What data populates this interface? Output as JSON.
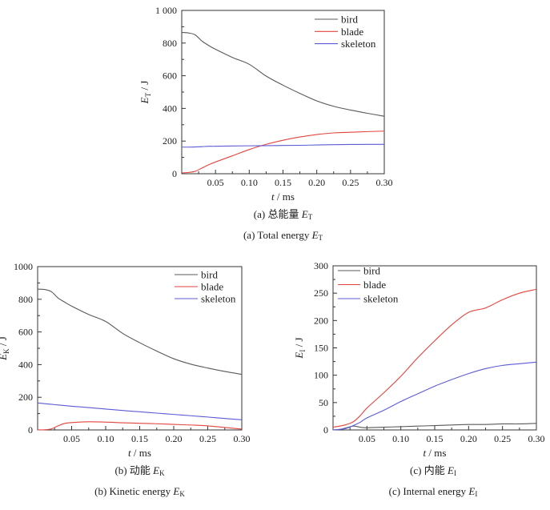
{
  "figure": {
    "background": "#ffffff",
    "frame_color": "#333333",
    "text_color": "#1c1c1c"
  },
  "chart_data": [
    {
      "id": "total",
      "type": "line",
      "xlabel": {
        "sym": "t",
        "unit": "ms"
      },
      "ylabel": {
        "sym": "E",
        "sub": "T",
        "unit": "J"
      },
      "xlim": [
        0,
        0.3
      ],
      "ylim": [
        0,
        1000
      ],
      "x_ticks": [
        0.05,
        0.1,
        0.15,
        0.2,
        0.25,
        0.3
      ],
      "x_tick_labels": [
        "0.05",
        "0.10",
        "0.15",
        "0.20",
        "0.25",
        "0.30"
      ],
      "x_minor_step": 0.025,
      "y_ticks": [
        0,
        200,
        400,
        600,
        800,
        1000
      ],
      "y_tick_labels": [
        "0",
        "200",
        "400",
        "600",
        "800",
        "1 000"
      ],
      "y_minor_step": 100,
      "legend_position": "top-right",
      "grid": false,
      "x": [
        0,
        0.01,
        0.02,
        0.03,
        0.04,
        0.05,
        0.075,
        0.1,
        0.125,
        0.15,
        0.175,
        0.2,
        0.225,
        0.25,
        0.275,
        0.3
      ],
      "series": [
        {
          "name": "bird",
          "color": "#595959",
          "values": [
            865,
            862,
            850,
            812,
            785,
            762,
            712,
            670,
            598,
            542,
            492,
            446,
            413,
            390,
            370,
            352
          ]
        },
        {
          "name": "blade",
          "color": "#e2453c",
          "values": [
            5,
            8,
            15,
            35,
            55,
            72,
            110,
            148,
            180,
            205,
            225,
            240,
            250,
            254,
            258,
            261
          ]
        },
        {
          "name": "skeleton",
          "color": "#5b5bd6",
          "values": [
            163,
            163,
            164,
            166,
            168,
            168,
            170,
            171,
            172,
            173,
            174,
            176,
            178,
            179,
            180,
            180
          ]
        }
      ]
    },
    {
      "id": "kinetic",
      "type": "line",
      "xlabel": {
        "sym": "t",
        "unit": "ms"
      },
      "ylabel": {
        "sym": "E",
        "sub": "K",
        "unit": "J"
      },
      "xlim": [
        0,
        0.3
      ],
      "ylim": [
        0,
        1000
      ],
      "x_ticks": [
        0.05,
        0.1,
        0.15,
        0.2,
        0.25,
        0.3
      ],
      "x_tick_labels": [
        "0.05",
        "0.10",
        "0.15",
        "0.20",
        "0.25",
        "0.30"
      ],
      "x_minor_step": 0.025,
      "y_ticks": [
        0,
        200,
        400,
        600,
        800,
        1000
      ],
      "y_tick_labels": [
        "0",
        "200",
        "400",
        "600",
        "800",
        "1000"
      ],
      "y_minor_step": 100,
      "legend_position": "top-right",
      "grid": false,
      "x": [
        0,
        0.01,
        0.02,
        0.03,
        0.04,
        0.05,
        0.075,
        0.1,
        0.125,
        0.15,
        0.175,
        0.2,
        0.225,
        0.25,
        0.275,
        0.3
      ],
      "series": [
        {
          "name": "bird",
          "color": "#595959",
          "values": [
            862,
            860,
            847,
            808,
            782,
            758,
            707,
            664,
            591,
            534,
            483,
            436,
            403,
            379,
            358,
            340
          ]
        },
        {
          "name": "blade",
          "color": "#e2453c",
          "values": [
            0,
            1,
            6,
            25,
            40,
            45,
            50,
            48,
            44,
            41,
            38,
            34,
            30,
            25,
            15,
            5
          ]
        },
        {
          "name": "skeleton",
          "color": "#5b5bd6",
          "values": [
            165,
            161,
            157,
            153,
            149,
            145,
            137,
            128,
            119,
            111,
            103,
            95,
            87,
            79,
            70,
            62
          ]
        }
      ]
    },
    {
      "id": "internal",
      "type": "line",
      "xlabel": {
        "sym": "t",
        "unit": "ms"
      },
      "ylabel": {
        "sym": "E",
        "sub": "I",
        "unit": "J"
      },
      "xlim": [
        0,
        0.3
      ],
      "ylim": [
        0,
        300
      ],
      "x_ticks": [
        0.05,
        0.1,
        0.15,
        0.2,
        0.25,
        0.3
      ],
      "x_tick_labels": [
        "0.05",
        "0.10",
        "0.15",
        "0.20",
        "0.25",
        "0.30"
      ],
      "x_minor_step": 0.025,
      "y_ticks": [
        0,
        50,
        100,
        150,
        200,
        250,
        300
      ],
      "y_tick_labels": [
        "0",
        "50",
        "100",
        "150",
        "200",
        "250",
        "300"
      ],
      "y_minor_step": 25,
      "legend_position": "top-left",
      "grid": false,
      "x": [
        0,
        0.01,
        0.02,
        0.03,
        0.04,
        0.05,
        0.075,
        0.1,
        0.125,
        0.15,
        0.175,
        0.2,
        0.225,
        0.25,
        0.275,
        0.3
      ],
      "series": [
        {
          "name": "bird",
          "color": "#595959",
          "values": [
            0,
            1,
            4,
            7,
            5,
            4,
            5,
            6,
            7,
            8,
            9,
            10,
            10,
            11,
            11,
            12
          ]
        },
        {
          "name": "blade",
          "color": "#e2453c",
          "values": [
            5,
            7,
            10,
            15,
            26,
            40,
            68,
            98,
            132,
            163,
            192,
            215,
            223,
            238,
            250,
            257
          ]
        },
        {
          "name": "skeleton",
          "color": "#5b5bd6",
          "values": [
            0,
            1,
            3,
            8,
            14,
            22,
            36,
            52,
            66,
            80,
            92,
            103,
            112,
            118,
            121,
            124
          ]
        }
      ]
    }
  ],
  "captions": {
    "a": {
      "zh_prefix": "(a) 总能量 ",
      "en_prefix": "(a) Total energy ",
      "sym": "E",
      "sub": "T"
    },
    "b": {
      "zh_prefix": "(b) 动能 ",
      "en_prefix": "(b) Kinetic energy ",
      "sym": "E",
      "sub": "K"
    },
    "c": {
      "zh_prefix": "(c) 内能 ",
      "en_prefix": "(c) Internal energy ",
      "sym": "E",
      "sub": "I"
    }
  }
}
